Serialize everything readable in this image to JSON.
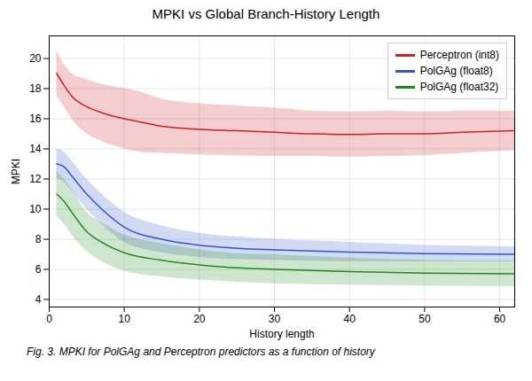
{
  "chart_data": {
    "type": "line",
    "title": "MPKI vs Global Branch-History Length",
    "xlabel": "History length",
    "ylabel": "MPKI",
    "caption": "Fig. 3.  MPKI for PolGAg and Perceptron predictors as a function of history",
    "xlim": [
      0,
      62
    ],
    "ylim": [
      3.5,
      21.5
    ],
    "xticks": [
      0,
      10,
      20,
      30,
      40,
      50,
      60
    ],
    "yticks": [
      4,
      6,
      8,
      10,
      12,
      14,
      16,
      18,
      20
    ],
    "grid": true,
    "legend": "upper right",
    "series": [
      {
        "name": "Perceptron (int8)",
        "color": "#cc2222",
        "x": [
          1,
          2,
          3,
          5,
          7,
          10,
          12,
          15,
          20,
          25,
          30,
          35,
          40,
          45,
          50,
          55,
          62
        ],
        "values": [
          19.0,
          18.2,
          17.5,
          16.8,
          16.4,
          16.0,
          15.8,
          15.5,
          15.3,
          15.2,
          15.1,
          15.0,
          14.95,
          15.0,
          15.0,
          15.1,
          15.2
        ],
        "lower": [
          17.5,
          16.8,
          16.0,
          15.0,
          14.5,
          14.0,
          13.8,
          13.7,
          13.6,
          13.55,
          13.5,
          13.5,
          13.45,
          13.5,
          13.55,
          13.7,
          13.9
        ],
        "upper": [
          20.5,
          19.6,
          19.0,
          18.6,
          18.3,
          18.0,
          17.8,
          17.3,
          17.0,
          16.85,
          16.7,
          16.5,
          16.45,
          16.5,
          16.45,
          16.5,
          16.5
        ]
      },
      {
        "name": "PolGAg (float8)",
        "color": "#3355cc",
        "x": [
          1,
          2,
          3,
          5,
          7,
          10,
          15,
          20,
          25,
          30,
          40,
          50,
          62
        ],
        "values": [
          13.0,
          12.8,
          12.2,
          11.0,
          10.0,
          8.8,
          8.0,
          7.6,
          7.4,
          7.3,
          7.15,
          7.05,
          7.0
        ],
        "lower": [
          12.0,
          11.8,
          11.2,
          10.0,
          9.0,
          7.8,
          7.1,
          6.8,
          6.65,
          6.6,
          6.5,
          6.5,
          6.5
        ],
        "upper": [
          14.0,
          13.8,
          13.2,
          12.0,
          11.0,
          9.8,
          8.9,
          8.4,
          8.15,
          8.0,
          7.8,
          7.6,
          7.5
        ]
      },
      {
        "name": "PolGAg (float32)",
        "color": "#228822",
        "x": [
          1,
          2,
          3,
          5,
          7,
          10,
          15,
          20,
          25,
          30,
          40,
          50,
          62
        ],
        "values": [
          11.0,
          10.5,
          9.8,
          8.5,
          7.8,
          7.1,
          6.6,
          6.3,
          6.1,
          6.0,
          5.85,
          5.75,
          5.7
        ],
        "lower": [
          9.5,
          9.0,
          8.3,
          7.2,
          6.5,
          5.9,
          5.5,
          5.3,
          5.15,
          5.05,
          4.95,
          4.9,
          4.85
        ],
        "upper": [
          12.5,
          12.0,
          11.3,
          9.8,
          9.1,
          8.3,
          7.7,
          7.3,
          7.05,
          6.95,
          6.75,
          6.6,
          6.55
        ]
      }
    ]
  }
}
